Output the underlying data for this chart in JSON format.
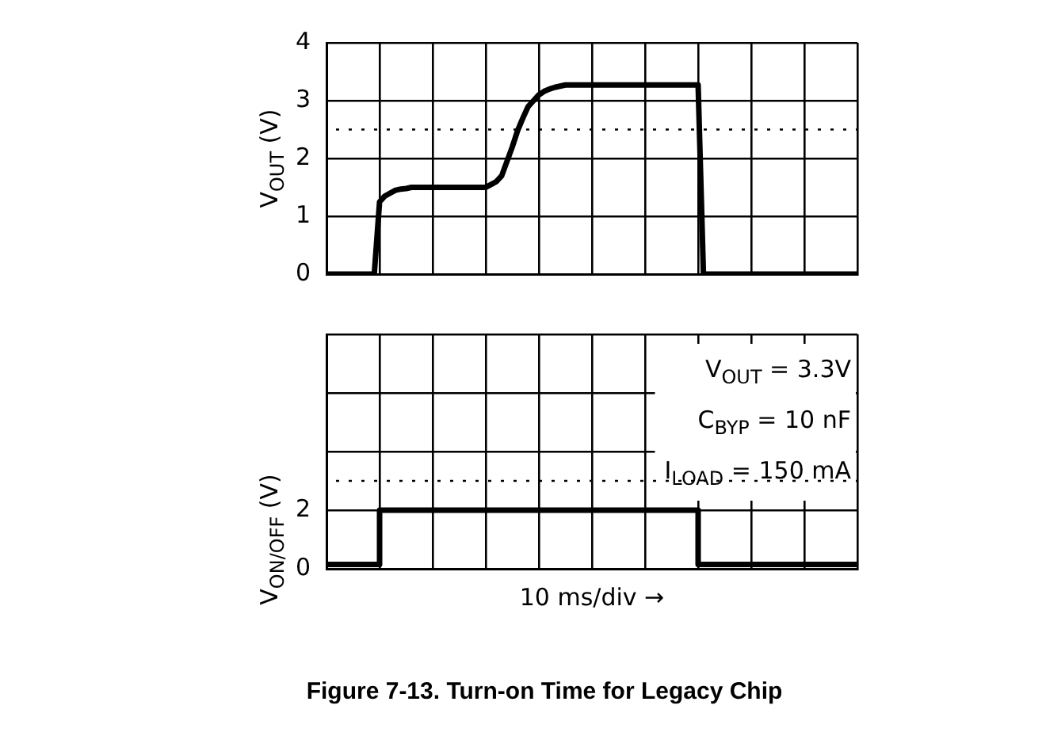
{
  "chart_data": [
    {
      "type": "line",
      "ylabel": "V$_{OUT}$ (V)",
      "categories": [
        null,
        null,
        null,
        null,
        null,
        null,
        null,
        null,
        null,
        null,
        null,
        null,
        null,
        null,
        null,
        null,
        null,
        null,
        null,
        null,
        null,
        null,
        null,
        null,
        null,
        null,
        null,
        null,
        null,
        null,
        null,
        null,
        null,
        null,
        null,
        null,
        null,
        null,
        null,
        null,
        null,
        null,
        null,
        null,
        null,
        null,
        null,
        null,
        null,
        null,
        null,
        null,
        null,
        null,
        null,
        null,
        null,
        null,
        null,
        null,
        null,
        null,
        null,
        null,
        null,
        null,
        null,
        null,
        null,
        null,
        null,
        null,
        null,
        null,
        null,
        null,
        null,
        null,
        null,
        null,
        null,
        null,
        null,
        null,
        null,
        null,
        null,
        null,
        null,
        null,
        null,
        null,
        null,
        null,
        null,
        null,
        null,
        null,
        null,
        null,
        null
      ],
      "series": [
        {
          "color": "#000000",
          "values": [
            0,
            0,
            0,
            0,
            0,
            0,
            0,
            0,
            0,
            0,
            1.25,
            1.35,
            1.4,
            1.45,
            1.47,
            1.48,
            1.5,
            1.5,
            1.5,
            1.5,
            1.5,
            1.5,
            1.5,
            1.5,
            1.5,
            1.5,
            1.5,
            1.5,
            1.5,
            1.5,
            1.5,
            1.55,
            1.6,
            1.7,
            1.95,
            2.2,
            2.48,
            2.7,
            2.9,
            3.0,
            3.1,
            3.16,
            3.2,
            3.23,
            3.25,
            3.27,
            3.27,
            3.27,
            3.27,
            3.27,
            3.27,
            3.27,
            3.27,
            3.27,
            3.27,
            3.27,
            3.27,
            3.27,
            3.27,
            3.27,
            3.27,
            3.27,
            3.27,
            3.27,
            3.27,
            3.27,
            3.27,
            3.27,
            3.27,
            3.27,
            3.27,
            0,
            0,
            0,
            0,
            0,
            0,
            0,
            0,
            0,
            0,
            0,
            0,
            0,
            0,
            0,
            0,
            0,
            0,
            0,
            0,
            0,
            0,
            0,
            0,
            0,
            0,
            0,
            0,
            0,
            0
          ]
        }
      ],
      "ylim": [
        0,
        4
      ],
      "yticks": [
        0,
        1,
        2,
        3,
        4
      ],
      "ref_lines": [
        {
          "axis": "y",
          "value": 2.5,
          "line_style": "dotted"
        }
      ],
      "grid": true,
      "legend": false,
      "marker": "none"
    },
    {
      "type": "step",
      "title": "Figure 7-13. Turn-on Time for Legacy Chip",
      "xlabel": "10 ms/div →",
      "ylabel": "V$_{ON/OFF}$ (V)",
      "annotations": [
        "V$_{OUT}$ = 3.3V",
        "C$_{BYP}$ = 10 nF",
        "I$_{LOAD}$ = 150 mA"
      ],
      "categories": [
        null,
        null,
        null,
        null,
        null,
        null,
        null,
        null,
        null,
        null,
        null,
        null,
        null,
        null,
        null,
        null,
        null,
        null,
        null,
        null,
        null,
        null,
        null,
        null,
        null,
        null,
        null,
        null,
        null,
        null,
        null,
        null,
        null,
        null,
        null,
        null,
        null,
        null,
        null,
        null,
        null,
        null,
        null,
        null,
        null,
        null,
        null,
        null,
        null,
        null,
        null,
        null,
        null,
        null,
        null,
        null,
        null,
        null,
        null,
        null,
        null,
        null,
        null,
        null,
        null,
        null,
        null,
        null,
        null,
        null,
        null,
        null,
        null,
        null,
        null,
        null,
        null,
        null,
        null,
        null,
        null,
        null,
        null,
        null,
        null,
        null,
        null,
        null,
        null,
        null,
        null,
        null,
        null,
        null,
        null,
        null,
        null,
        null,
        null,
        null,
        null
      ],
      "series": [
        {
          "color": "#000000",
          "values": [
            0.15,
            0.15,
            0.15,
            0.15,
            0.15,
            0.15,
            0.15,
            0.15,
            0.15,
            0.15,
            2,
            2,
            2,
            2,
            2,
            2,
            2,
            2,
            2,
            2,
            2,
            2,
            2,
            2,
            2,
            2,
            2,
            2,
            2,
            2,
            2,
            2,
            2,
            2,
            2,
            2,
            2,
            2,
            2,
            2,
            2,
            2,
            2,
            2,
            2,
            2,
            2,
            2,
            2,
            2,
            2,
            2,
            2,
            2,
            2,
            2,
            2,
            2,
            2,
            2,
            2,
            2,
            2,
            2,
            2,
            2,
            2,
            2,
            2,
            2,
            0.15,
            0.15,
            0.15,
            0.15,
            0.15,
            0.15,
            0.15,
            0.15,
            0.15,
            0.15,
            0.15,
            0.15,
            0.15,
            0.15,
            0.15,
            0.15,
            0.15,
            0.15,
            0.15,
            0.15,
            0.15,
            0.15,
            0.15,
            0.15,
            0.15,
            0.15,
            0.15,
            0.15,
            0.15,
            0.15,
            0.15
          ]
        }
      ],
      "ylim": [
        0,
        8
      ],
      "yticks": [
        0,
        2
      ],
      "ref_lines": [
        {
          "axis": "y",
          "value": 3,
          "line_style": "dotted"
        }
      ],
      "grid": true,
      "legend": false,
      "marker": "none"
    }
  ]
}
